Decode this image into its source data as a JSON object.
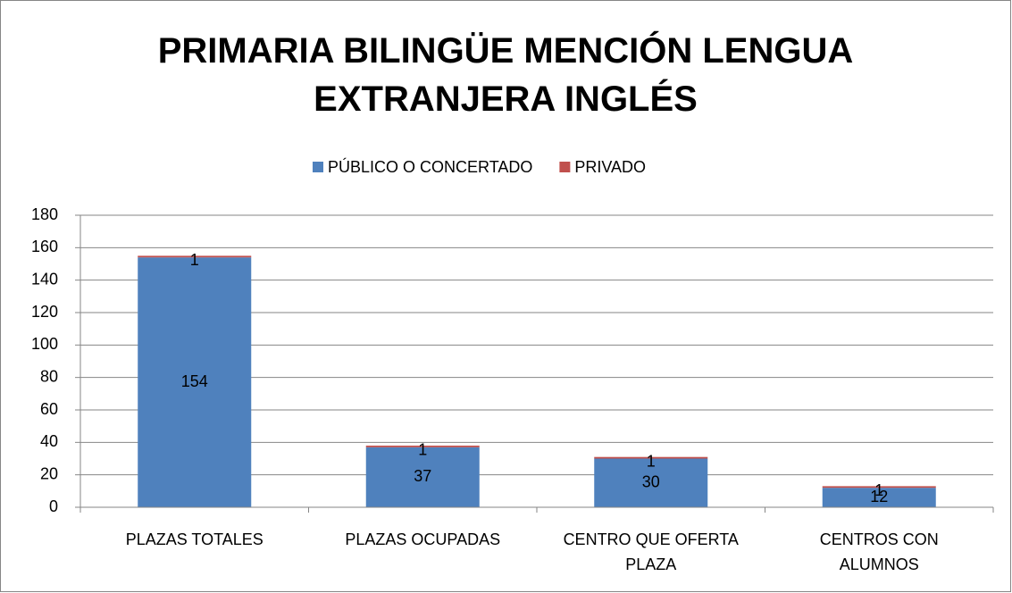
{
  "chart_data": {
    "type": "stacked_bar",
    "title": "PRIMARIA BILINGÜE MENCIÓN LENGUA EXTRANJERA INGLÉS",
    "categories": [
      "PLAZAS TOTALES",
      "PLAZAS OCUPADAS",
      "CENTRO QUE OFERTA PLAZA",
      "CENTROS CON ALUMNOS"
    ],
    "series": [
      {
        "name": "PÚBLICO O CONCERTADO",
        "color": "#4f81bd",
        "values": [
          154,
          37,
          30,
          12
        ]
      },
      {
        "name": "PRIVADO",
        "color": "#c0504d",
        "values": [
          1,
          1,
          1,
          1
        ]
      }
    ],
    "ylim": [
      0,
      180
    ],
    "yticks": [
      0,
      20,
      40,
      60,
      80,
      100,
      120,
      140,
      160,
      180
    ],
    "grid": true,
    "legend": "top"
  }
}
